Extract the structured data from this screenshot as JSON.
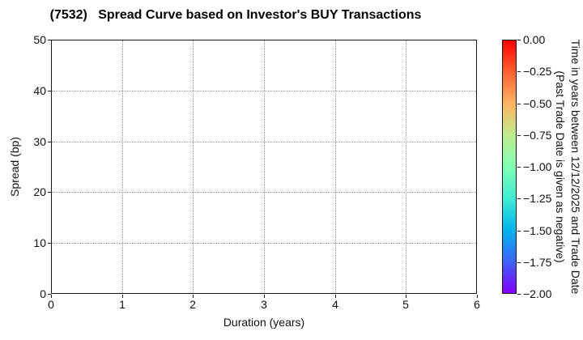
{
  "chart_data": {
    "type": "scatter",
    "title": "(7532)   Spread Curve based on Investor's BUY Transactions",
    "xlabel": "Duration (years)",
    "ylabel": "Spread (bp)",
    "xlim": [
      0,
      6
    ],
    "ylim": [
      0,
      50
    ],
    "x_ticks": [
      0,
      1,
      2,
      3,
      4,
      5,
      6
    ],
    "y_ticks": [
      0,
      10,
      20,
      30,
      40,
      50
    ],
    "grid": "dotted",
    "legend": "none",
    "points": [],
    "colorbar": {
      "range_top": 0,
      "range_bottom": -2,
      "ticks": [
        {
          "value": 0.0,
          "label": "0.00"
        },
        {
          "value": -0.25,
          "label": "−0.25"
        },
        {
          "value": -0.5,
          "label": "−0.50"
        },
        {
          "value": -0.75,
          "label": "−0.75"
        },
        {
          "value": -1.0,
          "label": "−1.00"
        },
        {
          "value": -1.25,
          "label": "−1.25"
        },
        {
          "value": -1.5,
          "label": "−1.50"
        },
        {
          "value": -1.75,
          "label": "−1.75"
        },
        {
          "value": -2.0,
          "label": "−2.00"
        }
      ],
      "label_line1": "Time in years between 12/12/2025 and Trade Date",
      "label_line2": "(Past Trade Date is given as negative)",
      "gradient_top_to_bottom": [
        "#ff0000",
        "#ff6132",
        "#ffb462",
        "#bfec8e",
        "#80ffb4",
        "#40ecd4",
        "#00b5ec",
        "#4062fa",
        "#8000ff"
      ]
    }
  },
  "colors": {
    "grid": "#999999",
    "spine": "#1a1a1a",
    "text": "#111111",
    "background": "#ffffff"
  }
}
